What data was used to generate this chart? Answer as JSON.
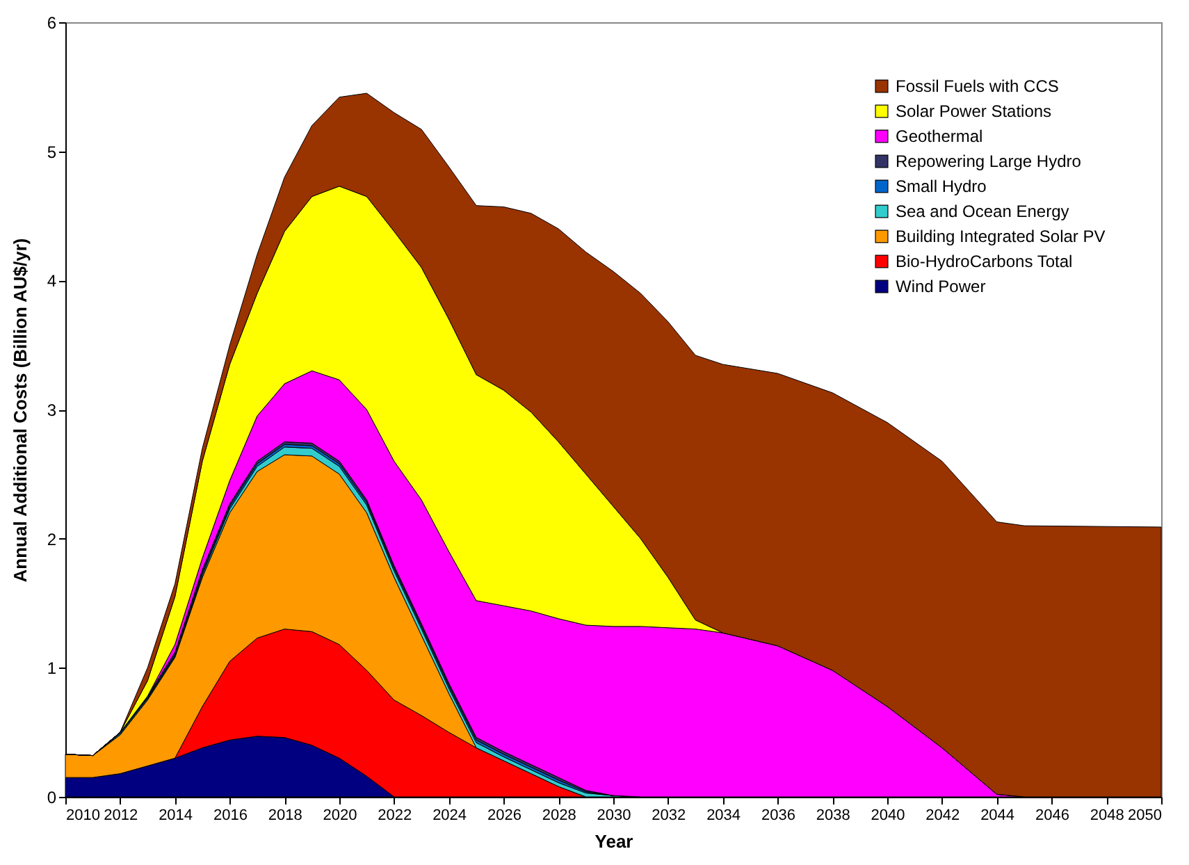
{
  "chart_data": {
    "type": "area",
    "stacked": true,
    "xlabel": "Year",
    "ylabel": "Annual Additional Costs  (Billion AU$/yr)",
    "x": [
      2010,
      2011,
      2012,
      2013,
      2014,
      2015,
      2016,
      2017,
      2018,
      2019,
      2020,
      2021,
      2022,
      2023,
      2024,
      2025,
      2026,
      2027,
      2028,
      2029,
      2030,
      2031,
      2032,
      2033,
      2034,
      2036,
      2038,
      2040,
      2042,
      2044,
      2045,
      2050
    ],
    "xlim": [
      2010,
      2050
    ],
    "xticks": [
      2010,
      2012,
      2014,
      2016,
      2018,
      2020,
      2022,
      2024,
      2026,
      2028,
      2030,
      2032,
      2034,
      2036,
      2038,
      2040,
      2042,
      2044,
      2046,
      2048,
      2050
    ],
    "ylim": [
      0,
      6
    ],
    "yticks": [
      0,
      1,
      2,
      3,
      4,
      5,
      6
    ],
    "grid": false,
    "legend": "top right",
    "series": [
      {
        "name": "Wind Power",
        "color": "#000080",
        "values": [
          0.15,
          0.15,
          0.18,
          0.24,
          0.3,
          0.38,
          0.44,
          0.47,
          0.46,
          0.4,
          0.3,
          0.16,
          0,
          0,
          0,
          0,
          0,
          0,
          0,
          0,
          0,
          0,
          0,
          0,
          0,
          0,
          0,
          0,
          0,
          0,
          0,
          0
        ]
      },
      {
        "name": "Bio-HydroCarbons Total",
        "color": "#ff0000",
        "values": [
          0,
          0,
          0,
          0,
          0,
          0.32,
          0.61,
          0.76,
          0.84,
          0.88,
          0.88,
          0.82,
          0.75,
          0.63,
          0.5,
          0.38,
          0.28,
          0.18,
          0.08,
          0,
          0,
          0,
          0,
          0,
          0,
          0,
          0,
          0,
          0,
          0,
          0,
          0
        ]
      },
      {
        "name": "Building Integrated Solar PV",
        "color": "#ff9900",
        "values": [
          0.18,
          0.17,
          0.3,
          0.51,
          0.78,
          1.0,
          1.15,
          1.29,
          1.35,
          1.36,
          1.32,
          1.22,
          0.95,
          0.62,
          0.3,
          0,
          0,
          0,
          0,
          0,
          0,
          0,
          0,
          0,
          0,
          0,
          0,
          0,
          0,
          0,
          0,
          0
        ]
      },
      {
        "name": "Sea and Ocean Energy",
        "color": "#33cccc",
        "values": [
          0,
          0,
          0.01,
          0.01,
          0.01,
          0.02,
          0.03,
          0.04,
          0.06,
          0.06,
          0.06,
          0.06,
          0.05,
          0.05,
          0.04,
          0.04,
          0.03,
          0.03,
          0.03,
          0.03,
          0.01,
          0,
          0,
          0,
          0,
          0,
          0,
          0,
          0,
          0,
          0,
          0
        ]
      },
      {
        "name": "Small Hydro",
        "color": "#0066cc",
        "values": [
          0,
          0,
          0.01,
          0.01,
          0.01,
          0.02,
          0.02,
          0.02,
          0.02,
          0.02,
          0.02,
          0.02,
          0.02,
          0.02,
          0.02,
          0.02,
          0.02,
          0.02,
          0.02,
          0.01,
          0,
          0,
          0,
          0,
          0,
          0,
          0,
          0,
          0,
          0,
          0,
          0
        ]
      },
      {
        "name": "Repowering Large Hydro",
        "color": "#333366",
        "values": [
          0,
          0,
          0,
          0.01,
          0.02,
          0.02,
          0.02,
          0.02,
          0.02,
          0.02,
          0.02,
          0.02,
          0.02,
          0.02,
          0.02,
          0.02,
          0.02,
          0.02,
          0.02,
          0.01,
          0,
          0,
          0,
          0,
          0,
          0,
          0,
          0,
          0,
          0,
          0,
          0
        ]
      },
      {
        "name": "Geothermal",
        "color": "#ff00ff",
        "values": [
          0,
          0,
          0,
          0,
          0.06,
          0.09,
          0.18,
          0.35,
          0.45,
          0.56,
          0.63,
          0.7,
          0.81,
          0.96,
          1.02,
          1.06,
          1.13,
          1.19,
          1.23,
          1.28,
          1.31,
          1.32,
          1.31,
          1.3,
          1.27,
          1.17,
          0.98,
          0.7,
          0.38,
          0.02,
          0,
          0
        ]
      },
      {
        "name": "Solar Power Stations",
        "color": "#ffff00",
        "values": [
          0,
          0,
          0,
          0.12,
          0.37,
          0.75,
          0.9,
          0.95,
          1.18,
          1.35,
          1.5,
          1.65,
          1.78,
          1.8,
          1.8,
          1.75,
          1.67,
          1.54,
          1.37,
          1.17,
          0.93,
          0.68,
          0.39,
          0.07,
          0,
          0,
          0,
          0,
          0,
          0,
          0,
          0
        ]
      },
      {
        "name": "Fossil Fuels with CCS",
        "color": "#993300",
        "values": [
          0,
          0,
          0,
          0.1,
          0.1,
          0.1,
          0.15,
          0.3,
          0.42,
          0.55,
          0.69,
          0.8,
          0.92,
          1.07,
          1.18,
          1.31,
          1.42,
          1.54,
          1.65,
          1.72,
          1.82,
          1.9,
          1.98,
          2.05,
          2.08,
          2.11,
          2.15,
          2.2,
          2.22,
          2.11,
          2.1,
          2.09
        ]
      }
    ]
  }
}
